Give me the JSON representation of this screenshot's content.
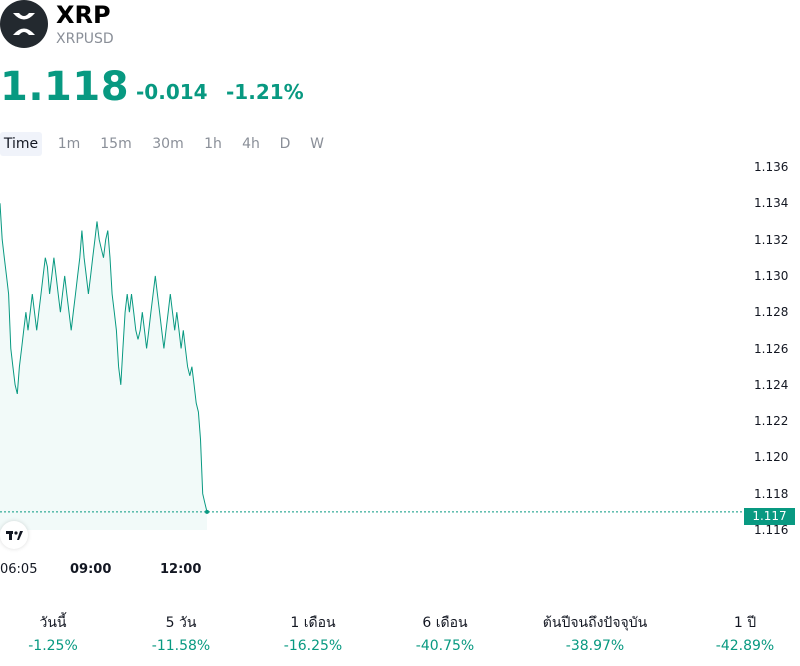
{
  "header": {
    "logo_icon": "xrp-logo-icon",
    "symbol": "XRP",
    "ticker": "XRPUSD",
    "price": "1.118",
    "change": "-0.014",
    "change_pct": "-1.21%",
    "color": "#089981"
  },
  "tabs": [
    "Time",
    "1m",
    "15m",
    "30m",
    "1h",
    "4h",
    "D",
    "W"
  ],
  "active_tab": "Time",
  "chart": {
    "last_price_tag": "1.117",
    "x_labels": [
      "06:05",
      "09:00",
      "12:00"
    ],
    "tv_logo_text": "TV"
  },
  "chart_data": {
    "type": "area",
    "y_ticks": [
      "1.116",
      "1.118",
      "1.120",
      "1.122",
      "1.124",
      "1.126",
      "1.128",
      "1.130",
      "1.132",
      "1.134",
      "1.136"
    ],
    "ylim": [
      1.116,
      1.136
    ],
    "x_ticks": [
      "06:05",
      "09:00",
      "12:00"
    ],
    "last_value": 1.117,
    "series": [
      {
        "values": [
          1.134,
          1.132,
          1.131,
          1.13,
          1.129,
          1.126,
          1.125,
          1.124,
          1.1235,
          1.125,
          1.126,
          1.127,
          1.128,
          1.127,
          1.128,
          1.129,
          1.128,
          1.127,
          1.128,
          1.129,
          1.13,
          1.131,
          1.1305,
          1.129,
          1.13,
          1.131,
          1.13,
          1.129,
          1.128,
          1.129,
          1.13,
          1.129,
          1.128,
          1.127,
          1.128,
          1.129,
          1.13,
          1.131,
          1.1325,
          1.131,
          1.13,
          1.129,
          1.13,
          1.131,
          1.132,
          1.133,
          1.132,
          1.1315,
          1.131,
          1.132,
          1.1325,
          1.131,
          1.129,
          1.128,
          1.127,
          1.125,
          1.124,
          1.126,
          1.128,
          1.129,
          1.128,
          1.129,
          1.128,
          1.127,
          1.1265,
          1.127,
          1.128,
          1.127,
          1.126,
          1.127,
          1.128,
          1.129,
          1.13,
          1.129,
          1.128,
          1.127,
          1.126,
          1.127,
          1.128,
          1.129,
          1.128,
          1.127,
          1.128,
          1.127,
          1.126,
          1.127,
          1.126,
          1.125,
          1.1245,
          1.125,
          1.124,
          1.123,
          1.1225,
          1.121,
          1.118,
          1.1175,
          1.117
        ]
      }
    ]
  },
  "performance": [
    {
      "label": "วันนี้",
      "value": "-1.25%"
    },
    {
      "label": "5 วัน",
      "value": "-11.58%"
    },
    {
      "label": "1 เดือน",
      "value": "-16.25%"
    },
    {
      "label": "6 เดือน",
      "value": "-40.75%"
    },
    {
      "label": "ต้นปีจนถึงปัจจุบัน",
      "value": "-38.97%"
    },
    {
      "label": "1 ปี",
      "value": "-42.89%"
    }
  ]
}
